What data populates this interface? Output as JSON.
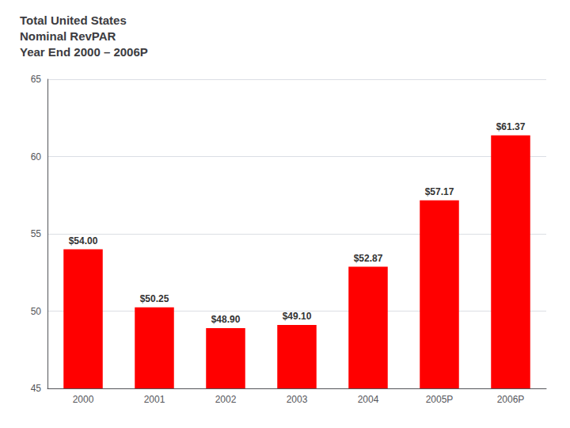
{
  "chart_data": {
    "type": "bar",
    "title": "Total United States\nNominal RevPAR\nYear End 2000 – 2006P",
    "categories": [
      "2000",
      "2001",
      "2002",
      "2003",
      "2004",
      "2005P",
      "2006P"
    ],
    "values": [
      54.0,
      50.25,
      48.9,
      49.1,
      52.87,
      57.17,
      61.37
    ],
    "value_labels": [
      "$54.00",
      "$50.25",
      "$48.90",
      "$49.10",
      "$52.87",
      "$57.17",
      "$61.37"
    ],
    "data_labels": true,
    "color": "#ff0000",
    "ylim": [
      45,
      65
    ],
    "yticks": [
      45,
      50,
      55,
      60,
      65
    ],
    "grid": true
  }
}
